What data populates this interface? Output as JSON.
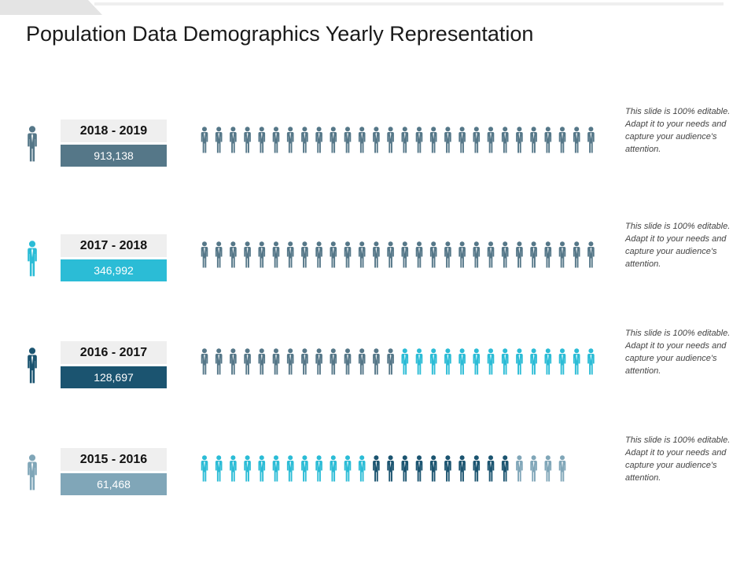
{
  "title": "Population Data Demographics Yearly Representation",
  "colors": {
    "slate": "#557788",
    "cyan": "#2bbcd6",
    "navy": "#1b5470",
    "steel": "#80a6b8"
  },
  "rows": [
    {
      "year": "2018 - 2019",
      "value": "913,138",
      "color": "#557788",
      "description": "This slide is 100% editable. Adapt it to your needs and capture your audience's attention.",
      "people": [
        {
          "color": "#557788",
          "count": 28
        }
      ]
    },
    {
      "year": "2017 - 2018",
      "value": "346,992",
      "color": "#2bbcd6",
      "description": "This slide is 100% editable. Adapt it to your needs and capture your audience's attention.",
      "people": [
        {
          "color": "#557788",
          "count": 28
        }
      ]
    },
    {
      "year": "2016 - 2017",
      "value": "128,697",
      "color": "#1b5470",
      "description": "This slide is 100% editable. Adapt it to your needs and capture your audience's attention.",
      "people": [
        {
          "color": "#557788",
          "count": 14
        },
        {
          "color": "#2bbcd6",
          "count": 14
        }
      ]
    },
    {
      "year": "2015 - 2016",
      "value": "61,468",
      "color": "#80a6b8",
      "description": "This slide is 100% editable. Adapt it to your needs and capture your audience's attention.",
      "people": [
        {
          "color": "#2bbcd6",
          "count": 12
        },
        {
          "color": "#1b5470",
          "count": 10
        },
        {
          "color": "#80a6b8",
          "count": 4
        }
      ]
    }
  ]
}
